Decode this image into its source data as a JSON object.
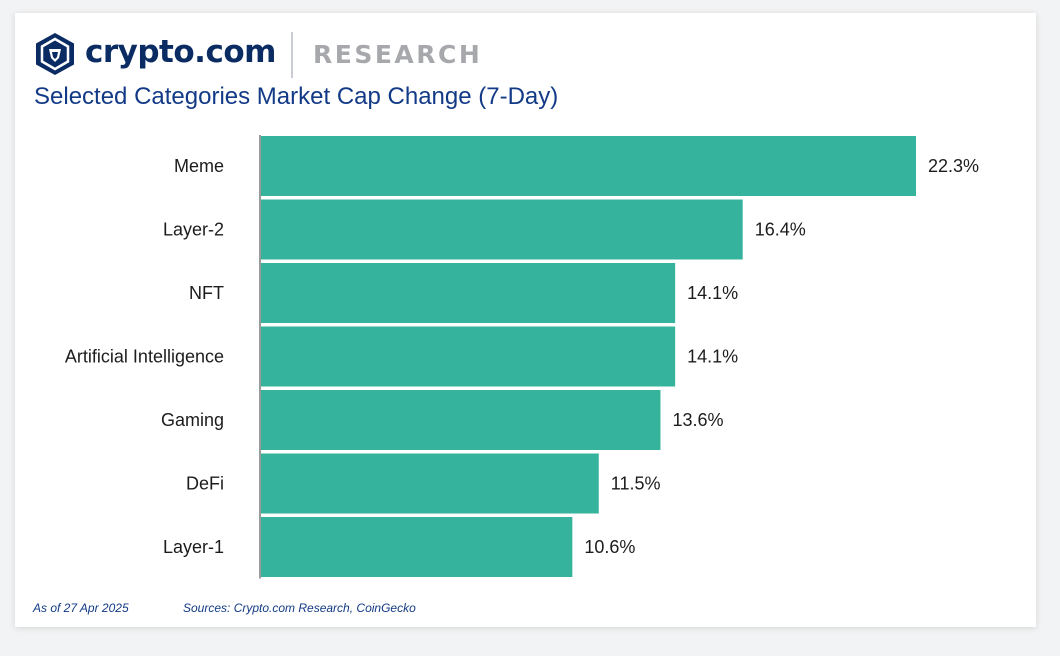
{
  "header": {
    "brand": "crypto.com",
    "section": "RESEARCH",
    "logo_icon": "crypto-com-lion-shield-icon",
    "brand_color": "#0b2b63"
  },
  "chart_data": {
    "type": "bar",
    "orientation": "horizontal",
    "title": "Selected Categories Market Cap Change (7-Day)",
    "categories": [
      "Meme",
      "Layer-2",
      "NFT",
      "Artificial Intelligence",
      "Gaming",
      "DeFi",
      "Layer-1"
    ],
    "values": [
      22.3,
      16.4,
      14.1,
      14.1,
      13.6,
      11.5,
      10.6
    ],
    "value_labels": [
      "22.3%",
      "16.4%",
      "14.1%",
      "14.1%",
      "13.6%",
      "11.5%",
      "10.6%"
    ],
    "xlabel": "",
    "ylabel": "",
    "grid": false,
    "legend": "none",
    "bar_color": "#36b39d"
  },
  "footer": {
    "date": "As of 27 Apr 2025",
    "sources": "Sources: Crypto.com Research, CoinGecko"
  }
}
